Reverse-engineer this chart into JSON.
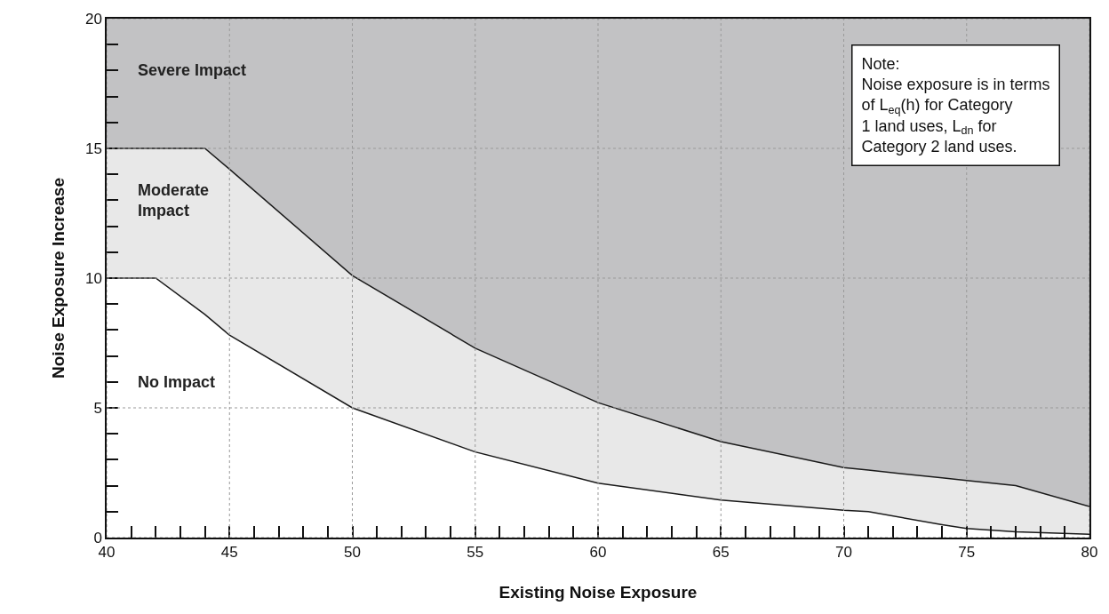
{
  "chart_data": {
    "type": "area",
    "xlabel": "Existing Noise Exposure",
    "ylabel": "Noise Exposure Increase",
    "x": [
      40,
      42,
      44,
      45,
      50,
      55,
      60,
      65,
      70,
      71,
      74,
      75,
      77,
      80
    ],
    "series": [
      {
        "name": "No Impact",
        "color": "#ffffff",
        "values": [
          10,
          10,
          8.6,
          7.8,
          5,
          3.3,
          2.1,
          1.45,
          1.05,
          1,
          0.5,
          0.35,
          0.22,
          0.13
        ]
      },
      {
        "name": "Moderate Impact",
        "color": "#e8e8e8",
        "values": [
          15,
          15,
          15,
          14.2,
          10.1,
          7.3,
          5.2,
          3.7,
          2.7,
          2.6,
          2.3,
          2.2,
          2,
          1.2
        ]
      },
      {
        "name": "Severe Impact",
        "color": "#c2c2c4",
        "values": [
          20,
          20,
          20,
          20,
          20,
          20,
          20,
          20,
          20,
          20,
          20,
          20,
          20,
          20
        ]
      }
    ],
    "xlim": [
      40,
      80
    ],
    "ylim": [
      0,
      20
    ],
    "xticks": [
      40,
      {
        "value": 41,
        "label": null
      },
      {
        "value": 42,
        "label": null
      },
      {
        "value": 43,
        "label": null
      },
      {
        "value": 44,
        "label": null
      },
      45,
      {
        "value": 46,
        "label": null
      },
      {
        "value": 47,
        "label": null
      },
      {
        "value": 48,
        "label": null
      },
      {
        "value": 49,
        "label": null
      },
      50,
      {
        "value": 51,
        "label": null
      },
      {
        "value": 52,
        "label": null
      },
      {
        "value": 53,
        "label": null
      },
      {
        "value": 54,
        "label": null
      },
      55,
      {
        "value": 56,
        "label": null
      },
      {
        "value": 57,
        "label": null
      },
      {
        "value": 58,
        "label": null
      },
      {
        "value": 59,
        "label": null
      },
      60,
      {
        "value": 61,
        "label": null
      },
      {
        "value": 62,
        "label": null
      },
      {
        "value": 63,
        "label": null
      },
      {
        "value": 64,
        "label": null
      },
      65,
      {
        "value": 66,
        "label": null
      },
      {
        "value": 67,
        "label": null
      },
      {
        "value": 68,
        "label": null
      },
      {
        "value": 69,
        "label": null
      },
      70,
      {
        "value": 71,
        "label": null
      },
      {
        "value": 72,
        "label": null
      },
      {
        "value": 73,
        "label": null
      },
      {
        "value": 74,
        "label": null
      },
      75,
      {
        "value": 76,
        "label": null
      },
      {
        "value": 77,
        "label": null
      },
      {
        "value": 78,
        "label": null
      },
      {
        "value": 79,
        "label": null
      },
      80
    ],
    "yticks": [
      0,
      {
        "value": 1,
        "label": null
      },
      {
        "value": 2,
        "label": null
      },
      {
        "value": 3,
        "label": null
      },
      {
        "value": 4,
        "label": null
      },
      5,
      {
        "value": 6,
        "label": null
      },
      {
        "value": 7,
        "label": null
      },
      {
        "value": 8,
        "label": null
      },
      {
        "value": 9,
        "label": null
      },
      10,
      {
        "value": 11,
        "label": null
      },
      {
        "value": 12,
        "label": null
      },
      {
        "value": 13,
        "label": null
      },
      {
        "value": 14,
        "label": null
      },
      15,
      {
        "value": 16,
        "label": null
      },
      {
        "value": 17,
        "label": null
      },
      {
        "value": 18,
        "label": null
      },
      {
        "value": 19,
        "label": null
      },
      20
    ],
    "grid": true,
    "annotations": [
      "Note:\nNoise exposure is in terms\nof L$_{eq}$(h) for Category\n1 land uses, L$_{dn}$ for\nCategory 2 land uses."
    ]
  }
}
